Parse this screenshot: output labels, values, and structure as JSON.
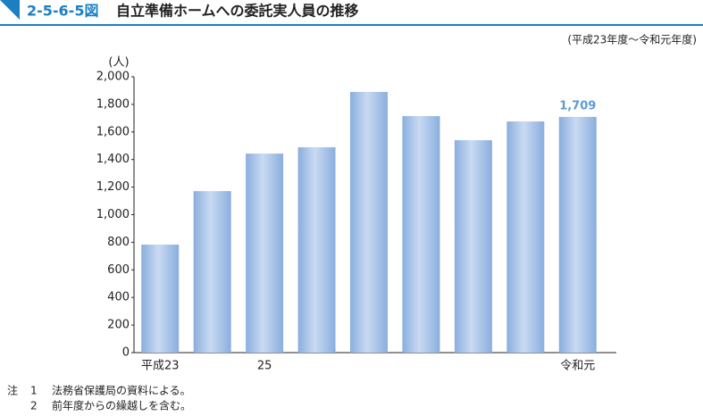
{
  "chart_data": {
    "type": "bar",
    "figure_label": "2-5-6-5図",
    "title": "自立準備ホームへの委託実人員の推移",
    "subtitle": "(平成23年度～令和元年度)",
    "y_label": "(人)",
    "categories": [
      "平成23",
      null,
      "25",
      null,
      null,
      null,
      null,
      null,
      "令和元"
    ],
    "values": [
      783,
      1171,
      1443,
      1489,
      1890,
      1715,
      1540,
      1676,
      1709
    ],
    "value_labels": [
      null,
      null,
      null,
      null,
      null,
      null,
      null,
      null,
      "1,709"
    ],
    "color": "#8aaede",
    "value_label_color": "#5b9bd5",
    "ylim": [
      0,
      2000
    ],
    "yticks": [
      0,
      200,
      400,
      600,
      800,
      {
        "value": 1000,
        "label": "1,000"
      },
      {
        "value": 1200,
        "label": "1,200"
      },
      {
        "value": 1400,
        "label": "1,400"
      },
      {
        "value": 1600,
        "label": "1,600"
      },
      {
        "value": 1800,
        "label": "1,800"
      },
      {
        "value": 2000,
        "label": "2,000"
      }
    ],
    "grid": false,
    "notes": [
      {
        "prefix": "注",
        "number": "1",
        "text": "法務省保護局の資料による。"
      },
      {
        "number": "2",
        "text": "前年度からの繰越しを含む。"
      }
    ]
  }
}
